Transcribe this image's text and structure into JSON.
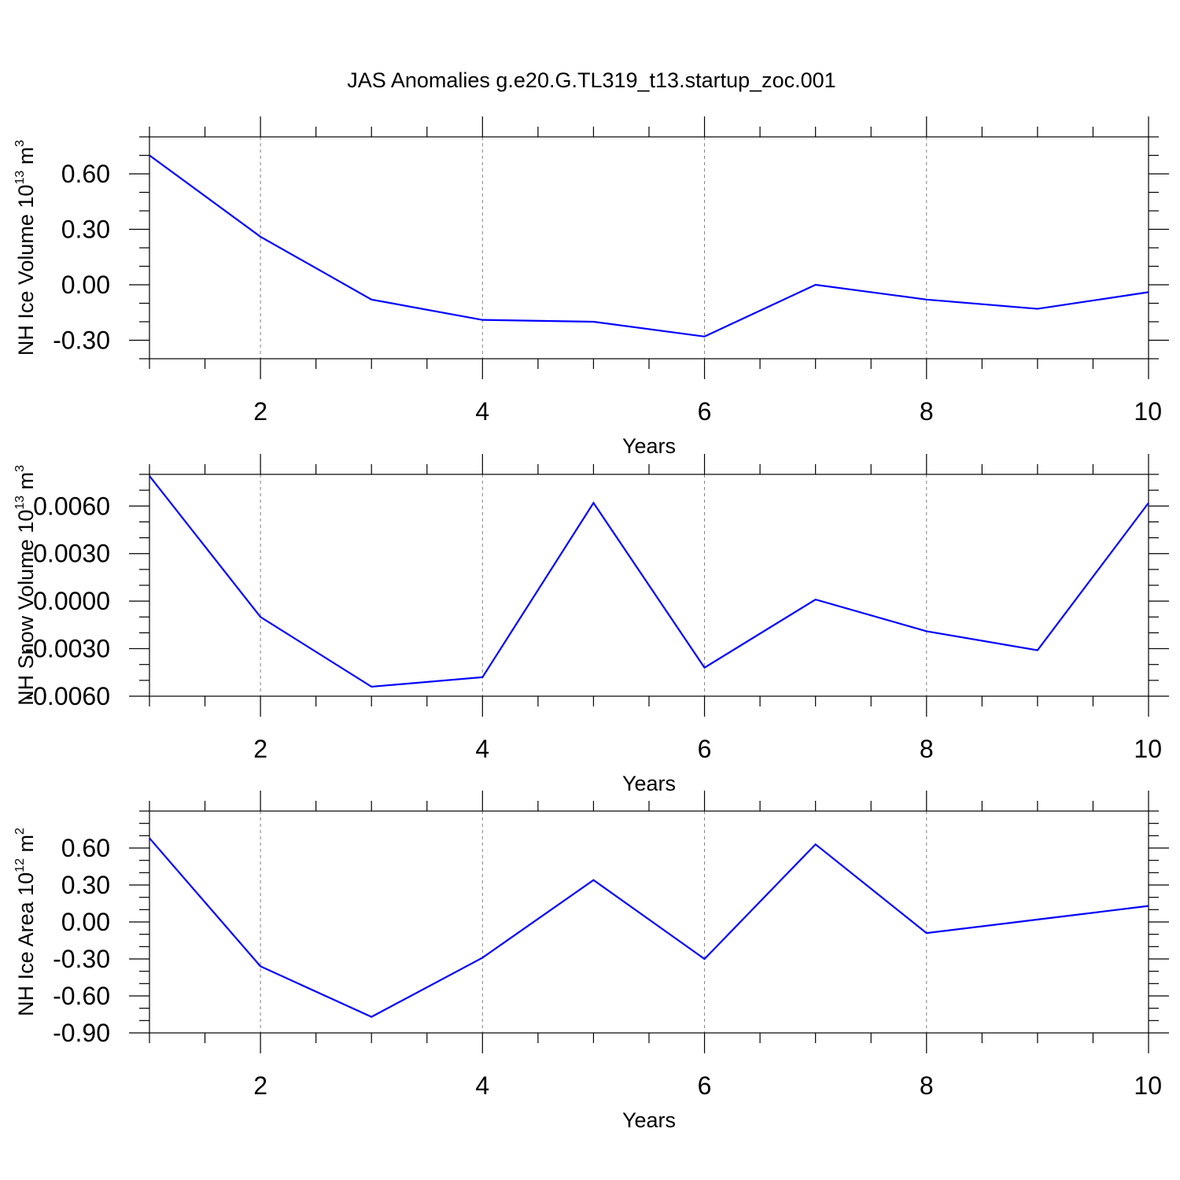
{
  "figure_title": "JAS Anomalies g.e20.G.TL319_t13.startup_zoc.001",
  "colors": {
    "line": "#0000ff",
    "axis": "#000000",
    "grid": "#808080"
  },
  "chart_data": [
    {
      "type": "line",
      "title": "",
      "xlabel": "Years",
      "ylabel_main": "NH Ice Volume 10",
      "ylabel_exp": "13",
      "ylabel_unit": " m",
      "ylabel_unit_exp": "3",
      "xlim": [
        1,
        10
      ],
      "ylim": [
        -0.4,
        0.8
      ],
      "xticks": [
        2,
        4,
        6,
        8,
        10
      ],
      "yticks": [
        0.6,
        0.3,
        0.0,
        -0.3
      ],
      "ytick_labels": [
        "0.60",
        "0.30",
        "0.00",
        "-0.30"
      ],
      "x_minor_step": 0.5,
      "y_minor_step": 0.1,
      "grid": "x-dashed",
      "series": [
        {
          "x": [
            1,
            2,
            3,
            4,
            5,
            6,
            7,
            8,
            9,
            10
          ],
          "values": [
            0.7,
            0.26,
            -0.08,
            -0.19,
            -0.2,
            -0.28,
            0.0,
            -0.08,
            -0.13,
            -0.04
          ]
        }
      ]
    },
    {
      "type": "line",
      "title": "",
      "xlabel": "Years",
      "ylabel_main": "NH Snow Volume 10",
      "ylabel_exp": "13",
      "ylabel_unit": " m",
      "ylabel_unit_exp": "3",
      "xlim": [
        1,
        10
      ],
      "ylim": [
        -0.006,
        0.008
      ],
      "xticks": [
        2,
        4,
        6,
        8,
        10
      ],
      "yticks": [
        0.006,
        0.003,
        0.0,
        -0.003,
        -0.006
      ],
      "ytick_labels": [
        "0.0060",
        "0.0030",
        "0.0000",
        "-0.0030",
        "-0.0060"
      ],
      "x_minor_step": 0.5,
      "y_minor_step": 0.001,
      "grid": "x-dashed",
      "series": [
        {
          "x": [
            1,
            2,
            3,
            4,
            5,
            6,
            7,
            8,
            9,
            10
          ],
          "values": [
            0.0079,
            -0.001,
            -0.0054,
            -0.0048,
            0.0062,
            -0.0042,
            0.0001,
            -0.0019,
            -0.0031,
            0.0062
          ]
        }
      ]
    },
    {
      "type": "line",
      "title": "",
      "xlabel": "Years",
      "ylabel_main": "NH Ice Area 10",
      "ylabel_exp": "12",
      "ylabel_unit": " m",
      "ylabel_unit_exp": "2",
      "xlim": [
        1,
        10
      ],
      "ylim": [
        -0.9,
        0.9
      ],
      "xticks": [
        2,
        4,
        6,
        8,
        10
      ],
      "yticks": [
        0.6,
        0.3,
        0.0,
        -0.3,
        -0.6,
        -0.9
      ],
      "ytick_labels": [
        "0.60",
        "0.30",
        "0.00",
        "-0.30",
        "-0.60",
        "-0.90"
      ],
      "x_minor_step": 0.5,
      "y_minor_step": 0.1,
      "grid": "x-dashed",
      "series": [
        {
          "x": [
            1,
            2,
            3,
            4,
            5,
            6,
            7,
            8,
            9,
            10
          ],
          "values": [
            0.68,
            -0.36,
            -0.77,
            -0.29,
            0.34,
            -0.3,
            0.63,
            -0.09,
            0.02,
            0.13
          ]
        }
      ]
    }
  ]
}
